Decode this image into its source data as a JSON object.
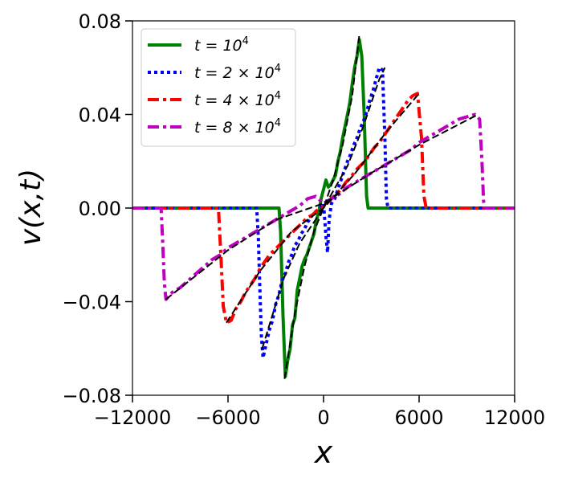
{
  "chart_data": {
    "type": "line",
    "xlabel": "x",
    "ylabel": "v(x,t)",
    "xlim": [
      -12000,
      12000
    ],
    "ylim": [
      -0.08,
      0.08
    ],
    "x_ticks": [
      -12000,
      -6000,
      0,
      6000,
      12000
    ],
    "x_tick_labels": [
      "−12000",
      "−6000",
      "0",
      "6000",
      "12000"
    ],
    "y_ticks": [
      0.08,
      0.04,
      0.0,
      -0.04,
      -0.08
    ],
    "y_tick_labels": [
      "0.08",
      "0.04",
      "0.00",
      "−0.04",
      "−0.08"
    ],
    "grid": false,
    "legend_position": "top-left",
    "series": [
      {
        "name": "t = 10^4",
        "legend_label": {
          "base": "t = 10",
          "exp": "4"
        },
        "color": "#008000",
        "dash": "solid",
        "points": [
          [
            -12000,
            0
          ],
          [
            -2800,
            0
          ],
          [
            -2700,
            -0.01
          ],
          [
            -2550,
            -0.045
          ],
          [
            -2400,
            -0.072
          ],
          [
            -2250,
            -0.065
          ],
          [
            -2100,
            -0.06
          ],
          [
            -1950,
            -0.05
          ],
          [
            -1800,
            -0.047
          ],
          [
            -1650,
            -0.035
          ],
          [
            -1500,
            -0.03
          ],
          [
            -1350,
            -0.025
          ],
          [
            -1200,
            -0.022
          ],
          [
            -1050,
            -0.02
          ],
          [
            -900,
            -0.017
          ],
          [
            -750,
            -0.014
          ],
          [
            -600,
            -0.011
          ],
          [
            -450,
            -0.005
          ],
          [
            -300,
            -0.002
          ],
          [
            -150,
            0.004
          ],
          [
            0,
            0.008
          ],
          [
            150,
            0.012
          ],
          [
            300,
            0.009
          ],
          [
            450,
            0.01
          ],
          [
            600,
            0.012
          ],
          [
            750,
            0.014
          ],
          [
            900,
            0.02
          ],
          [
            1050,
            0.024
          ],
          [
            1200,
            0.03
          ],
          [
            1350,
            0.035
          ],
          [
            1500,
            0.04
          ],
          [
            1650,
            0.045
          ],
          [
            1800,
            0.053
          ],
          [
            1950,
            0.06
          ],
          [
            2100,
            0.065
          ],
          [
            2250,
            0.072
          ],
          [
            2400,
            0.065
          ],
          [
            2550,
            0.04
          ],
          [
            2700,
            0.005
          ],
          [
            2800,
            0
          ],
          [
            12000,
            0
          ]
        ]
      },
      {
        "name": "t = 2 × 10^4",
        "legend_label": {
          "base": "t = 2 × 10",
          "exp": "4"
        },
        "color": "#0000ff",
        "dash": "dotted",
        "points": [
          [
            -12000,
            0
          ],
          [
            -4200,
            0
          ],
          [
            -4100,
            -0.012
          ],
          [
            -4000,
            -0.035
          ],
          [
            -3900,
            -0.055
          ],
          [
            -3800,
            -0.064
          ],
          [
            -3600,
            -0.058
          ],
          [
            -3400,
            -0.052
          ],
          [
            -3200,
            -0.048
          ],
          [
            -3000,
            -0.041
          ],
          [
            -2800,
            -0.037
          ],
          [
            -2600,
            -0.031
          ],
          [
            -2400,
            -0.028
          ],
          [
            -2200,
            -0.023
          ],
          [
            -2000,
            -0.02
          ],
          [
            -1800,
            -0.016
          ],
          [
            -1600,
            -0.014
          ],
          [
            -1400,
            -0.011
          ],
          [
            -1200,
            -0.009
          ],
          [
            -1000,
            -0.006
          ],
          [
            -800,
            -0.004
          ],
          [
            -600,
            -0.002
          ],
          [
            -400,
            -0.001
          ],
          [
            -200,
            0
          ],
          [
            0,
            0.002
          ],
          [
            150,
            -0.012
          ],
          [
            250,
            -0.019
          ],
          [
            350,
            -0.005
          ],
          [
            500,
            0.002
          ],
          [
            700,
            0.004
          ],
          [
            900,
            0.008
          ],
          [
            1100,
            0.012
          ],
          [
            1300,
            0.016
          ],
          [
            1500,
            0.02
          ],
          [
            1700,
            0.023
          ],
          [
            1900,
            0.027
          ],
          [
            2100,
            0.03
          ],
          [
            2300,
            0.034
          ],
          [
            2500,
            0.037
          ],
          [
            2700,
            0.041
          ],
          [
            2900,
            0.046
          ],
          [
            3100,
            0.05
          ],
          [
            3300,
            0.055
          ],
          [
            3500,
            0.06
          ],
          [
            3700,
            0.059
          ],
          [
            3850,
            0.03
          ],
          [
            3950,
            0.004
          ],
          [
            4050,
            0
          ],
          [
            12000,
            0
          ]
        ]
      },
      {
        "name": "t = 4 × 10^4",
        "legend_label": {
          "base": "t = 4 × 10",
          "exp": "4"
        },
        "color": "#ff0000",
        "dash": "dashdot",
        "points": [
          [
            -12000,
            0
          ],
          [
            -6600,
            0
          ],
          [
            -6450,
            -0.02
          ],
          [
            -6300,
            -0.042
          ],
          [
            -6100,
            -0.049
          ],
          [
            -5800,
            -0.048
          ],
          [
            -5500,
            -0.043
          ],
          [
            -5200,
            -0.04
          ],
          [
            -4900,
            -0.036
          ],
          [
            -4600,
            -0.033
          ],
          [
            -4300,
            -0.03
          ],
          [
            -4000,
            -0.026
          ],
          [
            -3700,
            -0.023
          ],
          [
            -3400,
            -0.02
          ],
          [
            -3100,
            -0.018
          ],
          [
            -2800,
            -0.016
          ],
          [
            -2500,
            -0.014
          ],
          [
            -2200,
            -0.012
          ],
          [
            -1900,
            -0.01
          ],
          [
            -1600,
            -0.008
          ],
          [
            -1300,
            -0.006
          ],
          [
            -1000,
            -0.004
          ],
          [
            -700,
            -0.003
          ],
          [
            -400,
            -0.001
          ],
          [
            -100,
            0
          ],
          [
            200,
            0.002
          ],
          [
            500,
            0.004
          ],
          [
            800,
            0.006
          ],
          [
            1100,
            0.008
          ],
          [
            1400,
            0.011
          ],
          [
            1700,
            0.013
          ],
          [
            2000,
            0.016
          ],
          [
            2300,
            0.018
          ],
          [
            2600,
            0.02
          ],
          [
            2900,
            0.023
          ],
          [
            3200,
            0.026
          ],
          [
            3500,
            0.028
          ],
          [
            3800,
            0.031
          ],
          [
            4100,
            0.034
          ],
          [
            4400,
            0.037
          ],
          [
            4700,
            0.04
          ],
          [
            5000,
            0.043
          ],
          [
            5300,
            0.046
          ],
          [
            5600,
            0.048
          ],
          [
            5900,
            0.049
          ],
          [
            6150,
            0.03
          ],
          [
            6300,
            0.005
          ],
          [
            6450,
            0
          ],
          [
            12000,
            0
          ]
        ]
      },
      {
        "name": "t = 8 × 10^4",
        "legend_label": {
          "base": "t = 8 × 10",
          "exp": "4"
        },
        "color": "#c000c0",
        "dash": "dashdot",
        "points": [
          [
            -12000,
            0
          ],
          [
            -10200,
            0
          ],
          [
            -10100,
            -0.015
          ],
          [
            -10000,
            -0.032
          ],
          [
            -9900,
            -0.039
          ],
          [
            -9500,
            -0.036
          ],
          [
            -9000,
            -0.034
          ],
          [
            -8500,
            -0.031
          ],
          [
            -8000,
            -0.028
          ],
          [
            -7500,
            -0.025
          ],
          [
            -7000,
            -0.022
          ],
          [
            -6500,
            -0.02
          ],
          [
            -6000,
            -0.017
          ],
          [
            -5500,
            -0.015
          ],
          [
            -5000,
            -0.013
          ],
          [
            -4500,
            -0.011
          ],
          [
            -4000,
            -0.009
          ],
          [
            -3500,
            -0.007
          ],
          [
            -3000,
            -0.005
          ],
          [
            -2500,
            -0.003
          ],
          [
            -2000,
            -0.001
          ],
          [
            -1500,
            0.001
          ],
          [
            -1000,
            0.004
          ],
          [
            -500,
            0.005
          ],
          [
            0,
            0.002
          ],
          [
            500,
            0.004
          ],
          [
            1000,
            0.006
          ],
          [
            1500,
            0.009
          ],
          [
            2000,
            0.011
          ],
          [
            2500,
            0.013
          ],
          [
            3000,
            0.015
          ],
          [
            3500,
            0.017
          ],
          [
            4000,
            0.019
          ],
          [
            4500,
            0.021
          ],
          [
            5000,
            0.023
          ],
          [
            5500,
            0.025
          ],
          [
            6000,
            0.028
          ],
          [
            6500,
            0.03
          ],
          [
            7000,
            0.032
          ],
          [
            7500,
            0.034
          ],
          [
            8000,
            0.036
          ],
          [
            8500,
            0.038
          ],
          [
            9000,
            0.039
          ],
          [
            9500,
            0.04
          ],
          [
            9800,
            0.038
          ],
          [
            9950,
            0.02
          ],
          [
            10050,
            0.003
          ],
          [
            10150,
            0
          ],
          [
            12000,
            0
          ]
        ]
      },
      {
        "name": "",
        "color": "#000000",
        "dash": "longdash",
        "points": [
          [
            -2450,
            -0.073
          ],
          [
            -1800,
            -0.045
          ],
          [
            -1200,
            -0.025
          ],
          [
            -600,
            -0.01
          ],
          [
            0,
            0
          ],
          [
            600,
            0.012
          ],
          [
            1200,
            0.027
          ],
          [
            1800,
            0.048
          ],
          [
            2250,
            0.074
          ]
        ]
      },
      {
        "name": "",
        "color": "#000000",
        "dash": "longdash",
        "points": [
          [
            -3850,
            -0.06
          ],
          [
            -2500,
            -0.03
          ],
          [
            -1500,
            -0.015
          ],
          [
            0,
            0
          ],
          [
            1500,
            0.018
          ],
          [
            2500,
            0.035
          ],
          [
            3500,
            0.055
          ],
          [
            3850,
            0.06
          ]
        ]
      },
      {
        "name": "",
        "color": "#000000",
        "dash": "longdash",
        "points": [
          [
            -6100,
            -0.049
          ],
          [
            -4000,
            -0.027
          ],
          [
            -2000,
            -0.01
          ],
          [
            0,
            0
          ],
          [
            2000,
            0.015
          ],
          [
            4000,
            0.033
          ],
          [
            6000,
            0.049
          ]
        ]
      },
      {
        "name": "",
        "color": "#000000",
        "dash": "longdash",
        "points": [
          [
            -9900,
            -0.039
          ],
          [
            -6000,
            -0.018
          ],
          [
            -3000,
            -0.005
          ],
          [
            0,
            0.002
          ],
          [
            3000,
            0.015
          ],
          [
            6000,
            0.027
          ],
          [
            9700,
            0.04
          ]
        ]
      }
    ]
  }
}
